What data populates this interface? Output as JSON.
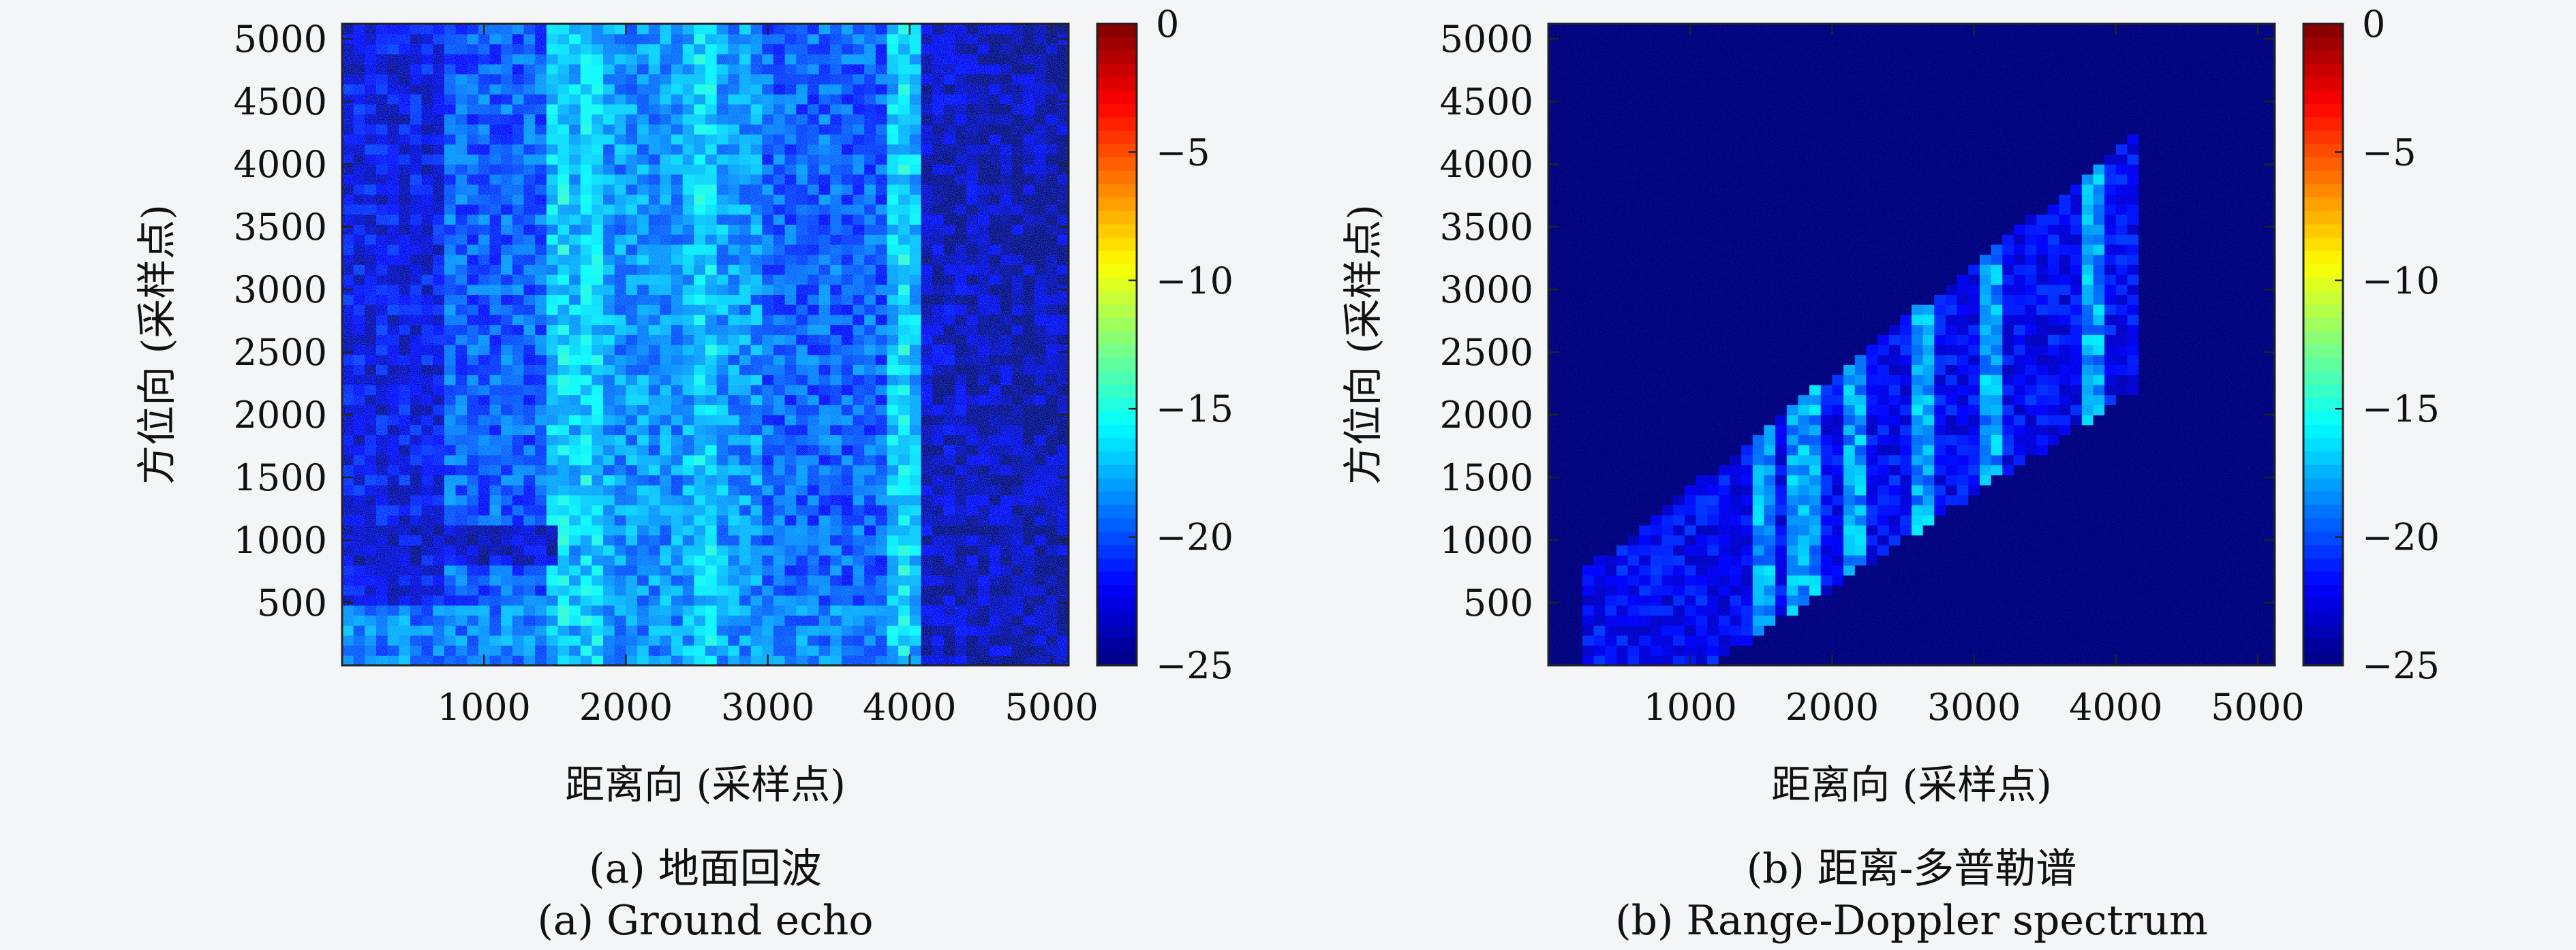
{
  "colormap": [
    "#00007f",
    "#0000ff",
    "#007fff",
    "#00ffff",
    "#7fff7f",
    "#ffff00",
    "#ff7f00",
    "#ff0000",
    "#7f0000"
  ],
  "panels": [
    {
      "id": "a",
      "caption_cn": "(a) 地面回波",
      "caption_en": "(a) Ground echo",
      "chart_data": {
        "type": "heatmap",
        "xlabel": "距离向 (采样点)",
        "ylabel": "方位向 (采样点)",
        "xlim": [
          0,
          5120
        ],
        "ylim": [
          0,
          5120
        ],
        "xticks": [
          1000,
          2000,
          3000,
          4000,
          5000
        ],
        "yticks": [
          500,
          1000,
          1500,
          2000,
          2500,
          3000,
          3500,
          4000,
          4500,
          5000
        ],
        "colorbar": {
          "range": [
            -25,
            0
          ],
          "ticks": [
            0,
            -5,
            -10,
            -15,
            -20,
            -25
          ]
        },
        "description_values": {
          "background_db": -25,
          "bright_columns_x": [
            1550,
            1750,
            2550,
            3950
          ],
          "bright_rows_y": [
            300,
            0
          ]
        }
      }
    },
    {
      "id": "b",
      "caption_cn": "(b) 距离-多普勒谱",
      "caption_en": "(b) Range-Doppler spectrum",
      "chart_data": {
        "type": "heatmap",
        "xlabel": "距离向 (采样点)",
        "ylabel": "方位向 (采样点)",
        "xlim": [
          0,
          5120
        ],
        "ylim": [
          0,
          5120
        ],
        "xticks": [
          1000,
          2000,
          3000,
          4000,
          5000
        ],
        "yticks": [
          500,
          1000,
          1500,
          2000,
          2500,
          3000,
          3500,
          4000,
          4500,
          5000
        ],
        "colorbar": {
          "range": [
            -25,
            0
          ],
          "ticks": [
            0,
            -5,
            -10,
            -15,
            -20,
            -25
          ]
        },
        "description_values": {
          "background_db": -25,
          "diagonal_band_start": [
            200,
            0
          ],
          "diagonal_band_end": [
            4000,
            3100
          ],
          "bright_streaks_x": [
            1500,
            1800,
            2150,
            2650,
            3100,
            3850
          ]
        }
      }
    }
  ]
}
